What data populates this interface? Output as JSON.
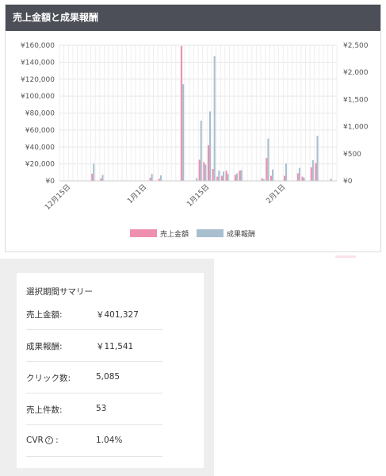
{
  "header": {
    "title": "売上金額と成果報酬"
  },
  "colors": {
    "sales": "#ef8fb0",
    "reward": "#a8bfcf",
    "header_bg": "#4c4f57"
  },
  "chart_data": {
    "type": "bar",
    "title": "売上金額と成果報酬",
    "legend_position": "bottom",
    "grid": true,
    "x_ticks": [
      "12月15日",
      "1月1日",
      "1月15日",
      "2月1日"
    ],
    "x_tick_index": [
      2,
      19,
      33,
      50
    ],
    "y_left": {
      "ticks": [
        "¥0",
        "¥20,000",
        "¥40,000",
        "¥60,000",
        "¥80,000",
        "¥100,000",
        "¥120,000",
        "¥140,000",
        "¥160,000"
      ],
      "lim": [
        0,
        160000
      ]
    },
    "y_right": {
      "ticks": [
        "¥0",
        "¥500",
        "¥1,000",
        "¥1,500",
        "¥2,000",
        "¥2,500"
      ],
      "lim": [
        0,
        2500
      ]
    },
    "series": [
      {
        "name": "売上金額",
        "axis": "left",
        "values": [
          0,
          0,
          0,
          0,
          0,
          0,
          0,
          8500,
          0,
          3000,
          0,
          0,
          0,
          0,
          0,
          0,
          0,
          0,
          0,
          0,
          3500,
          0,
          2500,
          0,
          0,
          0,
          0,
          159000,
          0,
          0,
          0,
          25000,
          22000,
          42000,
          14000,
          5000,
          6000,
          12000,
          0,
          7000,
          12000,
          0,
          0,
          0,
          0,
          3000,
          27000,
          6000,
          0,
          0,
          6000,
          0,
          0,
          9000,
          5000,
          0,
          16000,
          21000,
          0,
          0,
          0,
          0
        ]
      },
      {
        "name": "成果報酬",
        "axis": "right",
        "values": [
          0,
          0,
          0,
          0,
          0,
          0,
          0,
          320,
          0,
          110,
          0,
          0,
          0,
          0,
          0,
          0,
          0,
          0,
          0,
          0,
          130,
          0,
          100,
          0,
          0,
          0,
          0,
          1780,
          0,
          0,
          50,
          1110,
          300,
          1280,
          2300,
          190,
          170,
          130,
          0,
          140,
          200,
          0,
          0,
          0,
          0,
          30,
          780,
          210,
          0,
          0,
          320,
          0,
          0,
          240,
          60,
          0,
          380,
          830,
          0,
          0,
          40,
          0
        ]
      }
    ]
  },
  "summary": {
    "title": "選択期間サマリー",
    "rows": [
      {
        "label": "売上金額:",
        "value": "￥401,327"
      },
      {
        "label": "成果報酬:",
        "value": "￥11,541"
      },
      {
        "label": "クリック数:",
        "value": "5,085"
      },
      {
        "label": "売上件数:",
        "value": "53"
      },
      {
        "label": "CVR",
        "value": "1.04%"
      }
    ]
  }
}
